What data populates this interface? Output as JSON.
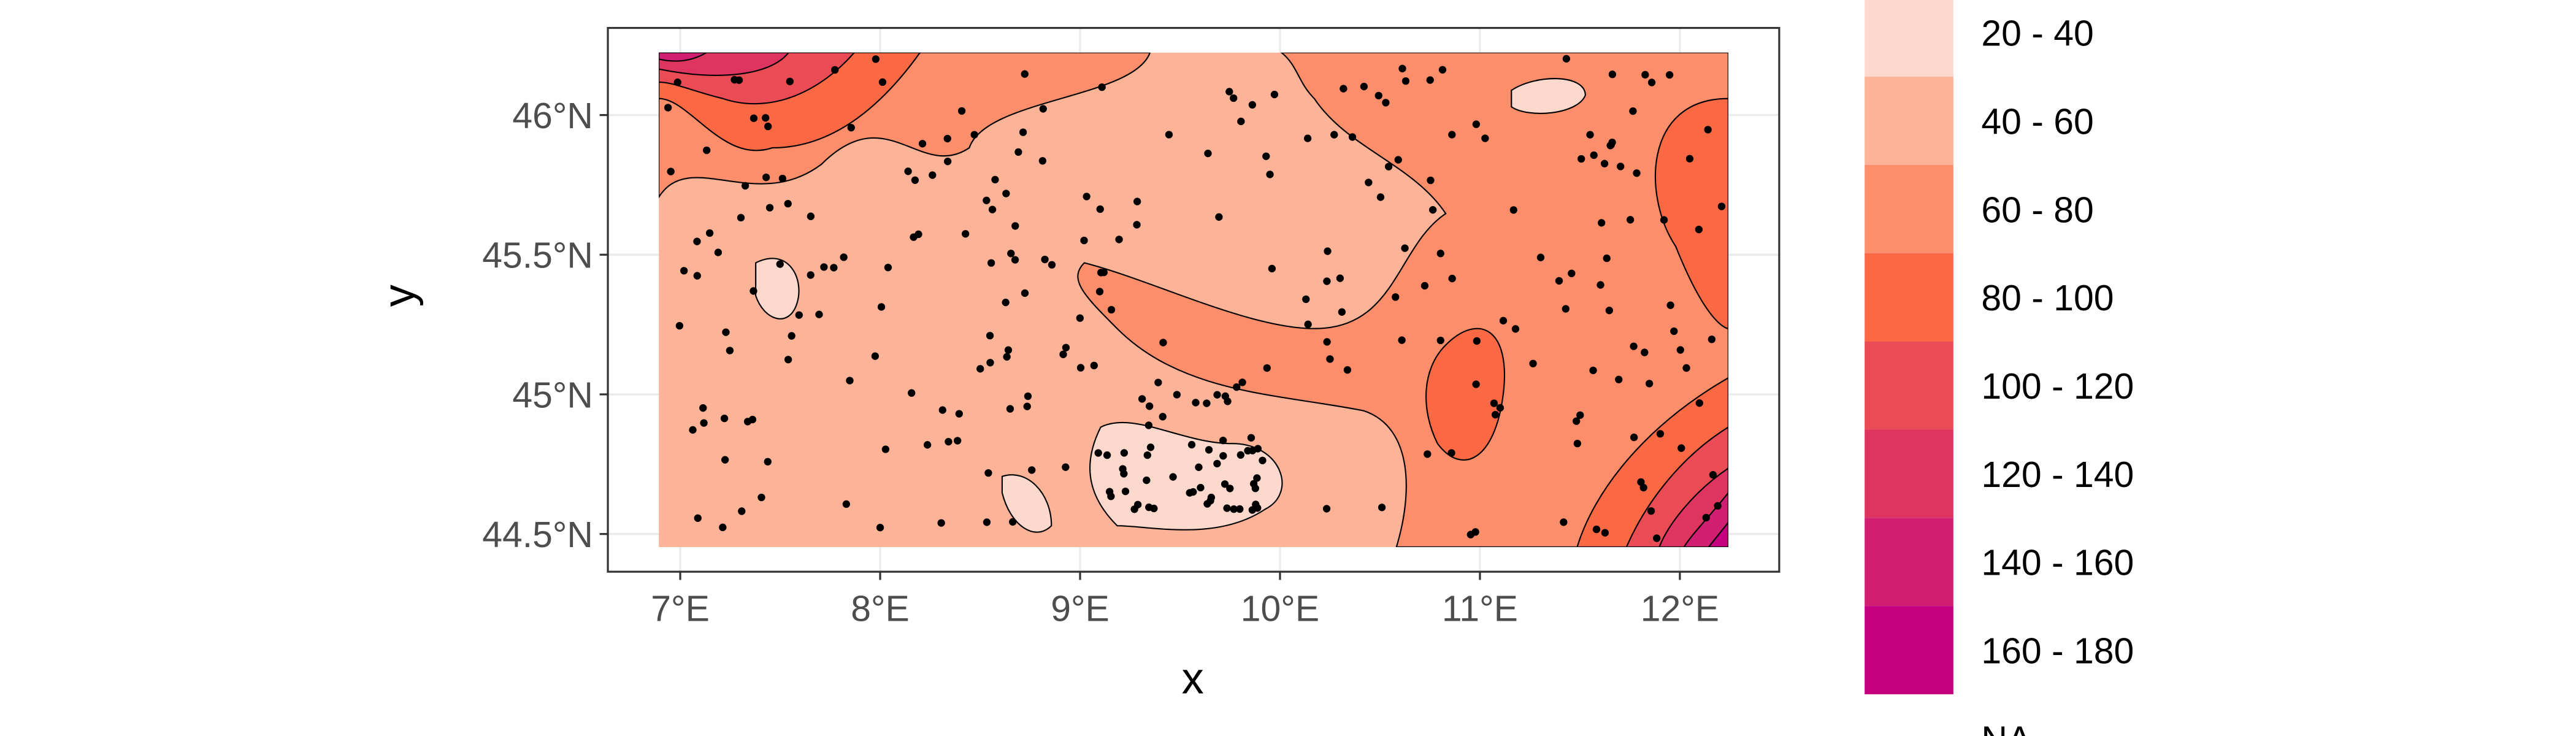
{
  "chart_data": {
    "type": "map",
    "x_label": "x",
    "y_label": "y",
    "xlim": [
      6.638,
      12.497
    ],
    "ylim": [
      44.365,
      46.312
    ],
    "xticks": [
      {
        "value": 7,
        "label": "7°E"
      },
      {
        "value": 8,
        "label": "8°E"
      },
      {
        "value": 9,
        "label": "9°E"
      },
      {
        "value": 10,
        "label": "10°E"
      },
      {
        "value": 11,
        "label": "11°E"
      },
      {
        "value": 12,
        "label": "12°E"
      }
    ],
    "yticks": [
      {
        "value": 44.5,
        "label": "44.5°N"
      },
      {
        "value": 45,
        "label": "45°N"
      },
      {
        "value": 45.5,
        "label": "45.5°N"
      },
      {
        "value": 46,
        "label": "46°N"
      }
    ],
    "grid": true,
    "legend": {
      "items": [
        {
          "label": "20 - 40",
          "color": "#fdd9cd"
        },
        {
          "label": "40 - 60",
          "color": "#fcb398"
        },
        {
          "label": "60 - 80",
          "color": "#fc8e6b"
        },
        {
          "label": "80 - 100",
          "color": "#fa6844"
        },
        {
          "label": "100 - 120",
          "color": "#ea4c55"
        },
        {
          "label": "120 - 140",
          "color": "#dd3560"
        },
        {
          "label": "140 - 160",
          "color": "#d01f73"
        },
        {
          "label": "160 - 180",
          "color": "#c4007f"
        }
      ],
      "na_label": "NA"
    }
  }
}
